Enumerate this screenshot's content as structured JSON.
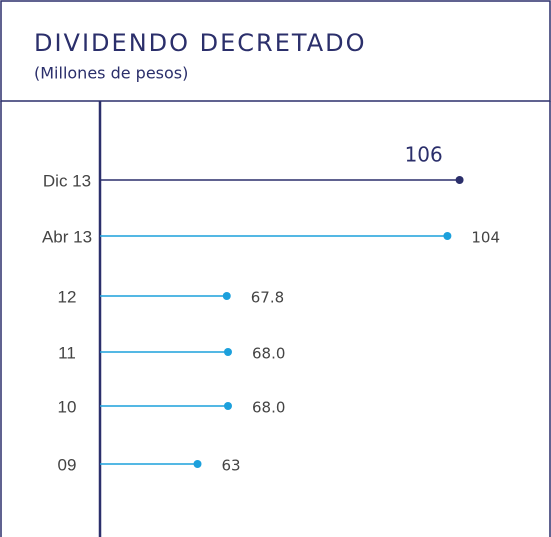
{
  "chart_data": {
    "type": "lollipop",
    "title": "DIVIDENDO DECRETADO",
    "subtitle": "(Millones de pesos)",
    "categories": [
      "Dic 13",
      "Abr 13",
      "12",
      "11",
      "10",
      "09"
    ],
    "values": [
      106,
      104,
      67.8,
      68.0,
      68.0,
      63
    ],
    "value_labels": [
      "106",
      "104",
      "67.8",
      "68.0",
      "68.0",
      "63"
    ],
    "colors": [
      "#2b2f6b",
      "#1ca0dc",
      "#1ca0dc",
      "#1ca0dc",
      "#1ca0dc",
      "#1ca0dc"
    ],
    "xlim": [
      47,
      121
    ]
  }
}
